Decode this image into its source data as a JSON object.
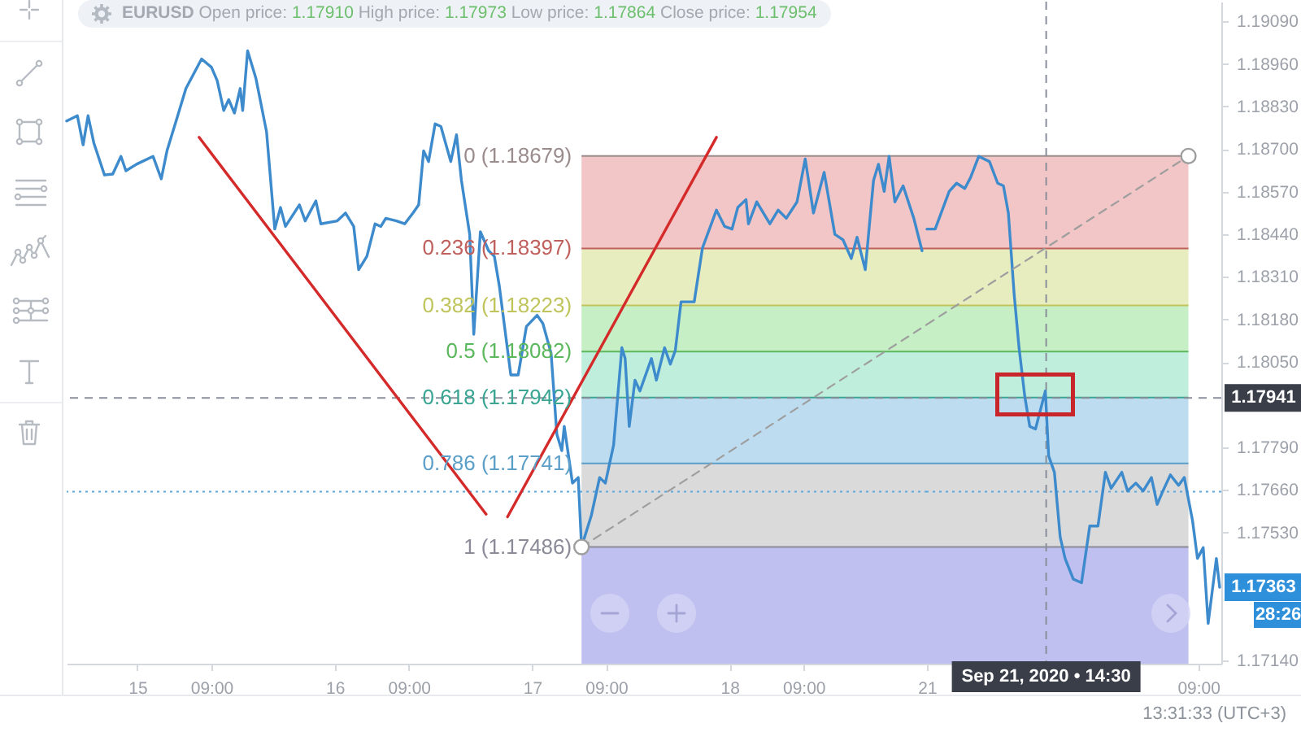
{
  "chart_data": [
    {
      "type": "line",
      "title": "EURUSD Open price: 1.17910 High price: 1.17973 Low price: 1.17864 Close price: 1.17954",
      "xlim": [
        "2020-09-14T15:24",
        "2020-09-19T00:00"
      ],
      "xticks": [
        {
          "value": "2020-09-15",
          "label": "15"
        },
        {
          "value": "2020-09-15T09:00",
          "label": "09:00"
        },
        {
          "value": "2020-09-16",
          "label": "16"
        },
        {
          "value": "2020-09-16T09:00",
          "label": "09:00"
        },
        {
          "value": "2020-09-17",
          "label": "17"
        },
        {
          "value": "2020-09-17T09:00",
          "label": "09:00"
        },
        {
          "value": "2020-09-18",
          "label": "18"
        },
        {
          "value": "2020-09-18T09:00",
          "label": "09:00"
        }
      ],
      "ylim": [
        1.1713,
        1.1915
      ],
      "tick_labels": "x",
      "bands": [
        {
          "axis": "y",
          "from": 1.18397,
          "to": 1.18679,
          "color": "#f2c6c6"
        },
        {
          "axis": "y",
          "from": 1.18223,
          "to": 1.18397,
          "color": "#e8edc0"
        },
        {
          "axis": "y",
          "from": 1.18082,
          "to": 1.18223,
          "color": "#c6efc6"
        },
        {
          "axis": "y",
          "from": 1.17942,
          "to": 1.18082,
          "color": "#c0eedd"
        },
        {
          "axis": "y",
          "from": 1.17741,
          "to": 1.17942,
          "color": "#bddcf0"
        },
        {
          "axis": "y",
          "from": 1.17486,
          "to": 1.17741,
          "color": "#dadada"
        },
        {
          "axis": "y",
          "from": 1.1713,
          "to": 1.17486,
          "color": "#bfbff0"
        }
      ],
      "ref_lines": [
        {
          "axis": "y",
          "value": 1.18679,
          "label": "0 (1.18679)",
          "color": "#9a8c8c",
          "line_style": "solid"
        },
        {
          "axis": "y",
          "value": 1.18397,
          "label": "0.236 (1.18397)",
          "color": "#c0605c",
          "line_style": "solid"
        },
        {
          "axis": "y",
          "value": 1.18223,
          "label": "0.382 (1.18223)",
          "color": "#bfc55a",
          "line_style": "solid"
        },
        {
          "axis": "y",
          "value": 1.18082,
          "label": "0.5 (1.18082)",
          "color": "#5cb85c",
          "line_style": "solid"
        },
        {
          "axis": "y",
          "value": 1.17942,
          "label": "0.618 (1.17942)",
          "color": "#3aa592",
          "line_style": "solid"
        },
        {
          "axis": "y",
          "value": 1.17741,
          "label": "0.786 (1.17741)",
          "color": "#5b9fc9",
          "line_style": "solid"
        },
        {
          "axis": "y",
          "value": 1.17486,
          "label": "1 (1.17486)",
          "color": "#8a8a98",
          "line_style": "solid"
        },
        {
          "axis": "y",
          "value": 1.17941,
          "color": "#8a8f99",
          "line_style": "dashed"
        },
        {
          "axis": "y",
          "value": 1.17655,
          "color": "#5fa8dc",
          "line_style": "dotted"
        }
      ],
      "series": [
        {
          "color": "#3d8bcd",
          "x": [
            "2020-09-14T15:24",
            "2020-09-14T16:42",
            "2020-09-14T17:24",
            "2020-09-14T18:00",
            "2020-09-14T18:42",
            "2020-09-14T20:00",
            "2020-09-14T21:00",
            "2020-09-14T22:00",
            "2020-09-14T22:36",
            "2020-09-14T23:54",
            "2020-09-15T01:54",
            "2020-09-15T02:54",
            "2020-09-15T03:36",
            "2020-09-15T04:54",
            "2020-09-15T05:54",
            "2020-09-15T07:48",
            "2020-09-15T09:00",
            "2020-09-15T09:42",
            "2020-09-15T10:30",
            "2020-09-15T11:06",
            "2020-09-15T11:48",
            "2020-09-15T12:30",
            "2020-09-15T12:48",
            "2020-09-15T13:24",
            "2020-09-15T14:24",
            "2020-09-15T15:42",
            "2020-09-15T16:42",
            "2020-09-15T17:24",
            "2020-09-15T18:00",
            "2020-09-15T19:42",
            "2020-09-15T20:24",
            "2020-09-15T21:42",
            "2020-09-15T22:18",
            "2020-09-16T00:18",
            "2020-09-16T01:18",
            "2020-09-16T02:18",
            "2020-09-16T02:54",
            "2020-09-16T03:54",
            "2020-09-16T04:54",
            "2020-09-16T05:36",
            "2020-09-16T06:12",
            "2020-09-16T07:30",
            "2020-09-16T08:30",
            "2020-09-16T09:30",
            "2020-09-16T10:12",
            "2020-09-16T10:48",
            "2020-09-16T11:24",
            "2020-09-16T12:12",
            "2020-09-16T12:54",
            "2020-09-16T14:06",
            "2020-09-16T14:48",
            "2020-09-16T15:24",
            "2020-09-16T16:24",
            "2020-09-16T16:54",
            "2020-09-16T17:42",
            "2020-09-16T18:42",
            "2020-09-16T19:24",
            "2020-09-16T20:00",
            "2020-09-16T21:24",
            "2020-09-16T22:18",
            "2020-09-16T23:18",
            "2020-09-17T00:36",
            "2020-09-17T01:18",
            "2020-09-17T02:18",
            "2020-09-17T03:00",
            "2020-09-17T03:36",
            "2020-09-17T03:54",
            "2020-09-17T04:54",
            "2020-09-17T05:36",
            "2020-09-17T06:00",
            "2020-09-17T07:12",
            "2020-09-17T08:12",
            "2020-09-17T08:54",
            "2020-09-17T09:54",
            "2020-09-17T10:54",
            "2020-09-17T11:18",
            "2020-09-17T11:48",
            "2020-09-17T12:30",
            "2020-09-17T13:06",
            "2020-09-17T14:30",
            "2020-09-17T15:06",
            "2020-09-17T16:06",
            "2020-09-17T16:48",
            "2020-09-17T17:24",
            "2020-09-17T18:06",
            "2020-09-17T19:42",
            "2020-09-17T20:42",
            "2020-09-17T22:24",
            "2020-09-17T23:24",
            "2020-09-18T00:18",
            "2020-09-18T01:00",
            "2020-09-18T02:00",
            "2020-09-18T02:18",
            "2020-09-18T03:18",
            "2020-09-18T04:54",
            "2020-09-18T05:54",
            "2020-09-18T06:54",
            "2020-09-18T08:12",
            "2020-09-18T09:12",
            "2020-09-18T10:12",
            "2020-09-18T11:30",
            "2020-09-18T12:48",
            "2020-09-18T13:48",
            "2020-09-18T14:48",
            "2020-09-18T15:30",
            "2020-09-18T16:30",
            "2020-09-18T17:30",
            "2020-09-18T18:06",
            "2020-09-18T18:48",
            "2020-09-18T19:24",
            "2020-09-18T20:06",
            "2020-09-18T21:06",
            "2020-09-18T22:24",
            "2020-09-18T23:24"
          ],
          "values": [
            1.18786,
            1.18802,
            1.18713,
            1.18802,
            1.18719,
            1.18621,
            1.18624,
            1.18678,
            1.18634,
            1.18654,
            1.18678,
            1.18609,
            1.18695,
            1.18802,
            1.18885,
            1.18975,
            1.1895,
            1.18909,
            1.18818,
            1.18851,
            1.1881,
            1.18885,
            1.18818,
            1.19,
            1.18917,
            1.18753,
            1.18456,
            1.18522,
            1.18464,
            1.1853,
            1.18481,
            1.18542,
            1.18472,
            1.18481,
            1.18505,
            1.18464,
            1.18332,
            1.18373,
            1.18472,
            1.18464,
            1.18489,
            1.18481,
            1.18472,
            1.18505,
            1.1853,
            1.18695,
            1.18662,
            1.18777,
            1.18769,
            1.18662,
            1.18744,
            1.18604,
            1.1844,
            1.18135,
            1.18448,
            1.1839,
            1.18373,
            1.18283,
            1.18011,
            1.18011,
            1.18159,
            1.18193,
            1.18168,
            1.18077,
            1.1783,
            1.1778,
            1.17854,
            1.17681,
            1.17698,
            1.17486,
            1.17583,
            1.17698,
            1.17681,
            1.17797,
            1.18094,
            1.18061,
            1.17854,
            1.17995,
            1.17962,
            1.18061,
            1.17995,
            1.18094,
            1.18044,
            1.18085,
            1.18234,
            1.18234,
            1.18398,
            1.18514,
            1.18464,
            1.18456,
            1.18522,
            1.18546,
            1.18472,
            1.18539,
            1.18472,
            1.18514,
            1.18489,
            1.18539,
            1.1867,
            1.18505,
            1.18629,
            1.1844,
            1.18423,
            1.18366,
            1.18431,
            1.18332,
            1.18604,
            1.18654,
            1.18571,
            1.18678,
            1.18539,
            1.18588,
            1.18489,
            1.1839
          ]
        },
        {
          "color": "#9e9e9e",
          "line_style": "dashed",
          "x": [
            "2020-09-17T06:00",
            "2020-09-19T00:00"
          ],
          "values": [
            1.17486,
            1.18165
          ]
        },
        {
          "type": "scatter",
          "color": "#9e9e9e",
          "marker": "circle",
          "x": [
            "2020-09-17T06:00"
          ],
          "values": [
            1.17486
          ]
        },
        {
          "color": "#d42a2a",
          "x": [
            "2020-09-15T07:30",
            "2020-09-16T18:24"
          ],
          "values": [
            1.18736,
            1.17586
          ]
        },
        {
          "color": "#d42a2a",
          "x": [
            "2020-09-16T21:00",
            "2020-09-17T22:24"
          ],
          "values": [
            1.17578,
            1.18736
          ]
        }
      ]
    },
    {
      "type": "line",
      "xlim": [
        "2020-09-21T00:00",
        "2020-09-22T11:48"
      ],
      "xticks": [
        {
          "value": "2020-09-21",
          "label": "21"
        },
        {
          "value": "2020-09-22T09:00",
          "label": "09:00"
        }
      ],
      "ylim": [
        1.1713,
        1.1915
      ],
      "yticks": [
        {
          "value": 1.1909,
          "label": "1.19090"
        },
        {
          "value": 1.1896,
          "label": "1.18960"
        },
        {
          "value": 1.1883,
          "label": "1.18830"
        },
        {
          "value": 1.187,
          "label": "1.18700"
        },
        {
          "value": 1.1857,
          "label": "1.18570"
        },
        {
          "value": 1.1844,
          "label": "1.18440"
        },
        {
          "value": 1.1831,
          "label": "1.18310"
        },
        {
          "value": 1.1818,
          "label": "1.18180"
        },
        {
          "value": 1.1805,
          "label": "1.18050"
        },
        {
          "value": 1.1779,
          "label": "1.17790"
        },
        {
          "value": 1.1766,
          "label": "1.17660"
        },
        {
          "value": 1.1753,
          "label": "1.17530"
        },
        {
          "value": 1.1714,
          "label": "1.17140"
        }
      ],
      "bands": [
        {
          "axis": "y",
          "from": 1.18397,
          "to": 1.18679,
          "color": "#f2c6c6"
        },
        {
          "axis": "y",
          "from": 1.18223,
          "to": 1.18397,
          "color": "#e8edc0"
        },
        {
          "axis": "y",
          "from": 1.18082,
          "to": 1.18223,
          "color": "#c6efc6"
        },
        {
          "axis": "y",
          "from": 1.17942,
          "to": 1.18082,
          "color": "#c0eedd"
        },
        {
          "axis": "y",
          "from": 1.17741,
          "to": 1.17942,
          "color": "#bddcf0"
        },
        {
          "axis": "y",
          "from": 1.17486,
          "to": 1.17741,
          "color": "#dadada"
        },
        {
          "axis": "y",
          "from": 1.1713,
          "to": 1.17486,
          "color": "#bfbff0"
        }
      ],
      "ref_lines": [
        {
          "axis": "y",
          "value": 1.18679,
          "color": "#9a8c8c",
          "line_style": "solid"
        },
        {
          "axis": "y",
          "value": 1.18397,
          "color": "#c0605c",
          "line_style": "solid"
        },
        {
          "axis": "y",
          "value": 1.18223,
          "color": "#bfc55a",
          "line_style": "solid"
        },
        {
          "axis": "y",
          "value": 1.18082,
          "color": "#5cb85c",
          "line_style": "solid"
        },
        {
          "axis": "y",
          "value": 1.17942,
          "color": "#3aa592",
          "line_style": "solid"
        },
        {
          "axis": "y",
          "value": 1.17741,
          "color": "#5b9fc9",
          "line_style": "solid"
        },
        {
          "axis": "y",
          "value": 1.17486,
          "color": "#8a8a98",
          "line_style": "solid"
        },
        {
          "axis": "y",
          "value": 1.17941,
          "label": "1.17941",
          "color": "#8a8f99",
          "line_style": "dashed"
        },
        {
          "axis": "x",
          "value": "2020-09-21T14:30",
          "label": "Sep 21, 2020 • 14:30",
          "color": "#8a8f99",
          "line_style": "dashed"
        },
        {
          "axis": "y",
          "value": 1.17655,
          "color": "#5fa8dc",
          "line_style": "dotted"
        }
      ],
      "series": [
        {
          "color": "#3d8bcd",
          "x": [
            "2020-09-21T00:00",
            "2020-09-21T01:00",
            "2020-09-21T02:42",
            "2020-09-21T03:36",
            "2020-09-21T04:36",
            "2020-09-21T05:18",
            "2020-09-21T06:18",
            "2020-09-21T07:36",
            "2020-09-21T08:36",
            "2020-09-21T09:18",
            "2020-09-21T09:54",
            "2020-09-21T10:36",
            "2020-09-21T11:12",
            "2020-09-21T11:54",
            "2020-09-21T12:30",
            "2020-09-21T13:12",
            "2020-09-21T14:24",
            "2020-09-21T14:48",
            "2020-09-21T15:30",
            "2020-09-21T16:12",
            "2020-09-21T16:48",
            "2020-09-21T17:48",
            "2020-09-21T18:48",
            "2020-09-21T19:48",
            "2020-09-21T20:48",
            "2020-09-21T21:42",
            "2020-09-21T22:24",
            "2020-09-21T23:42",
            "2020-09-22T00:24",
            "2020-09-22T01:24",
            "2020-09-22T02:18",
            "2020-09-22T03:18",
            "2020-09-22T04:00",
            "2020-09-22T04:42",
            "2020-09-22T05:36",
            "2020-09-22T06:36",
            "2020-09-22T07:18",
            "2020-09-22T08:18",
            "2020-09-22T08:54",
            "2020-09-22T09:36",
            "2020-09-22T10:12",
            "2020-09-22T11:12",
            "2020-09-22T11:36"
          ],
          "values": [
            1.18456,
            1.18456,
            1.18571,
            1.18596,
            1.1858,
            1.18613,
            1.18678,
            1.18662,
            1.18596,
            1.18588,
            1.18505,
            1.18258,
            1.18094,
            1.17945,
            1.17854,
            1.17846,
            1.17962,
            1.17764,
            1.17714,
            1.17517,
            1.17451,
            1.17388,
            1.17377,
            1.1755,
            1.1755,
            1.17714,
            1.17665,
            1.17714,
            1.17657,
            1.17681,
            1.17657,
            1.17698,
            1.17616,
            1.17657,
            1.17706,
            1.17674,
            1.17698,
            1.17566,
            1.17451,
            1.17484,
            1.17253,
            1.17451,
            1.17363
          ]
        },
        {
          "color": "#9e9e9e",
          "line_style": "dashed",
          "x": [
            "2020-09-21T00:00",
            "2020-09-22T07:48"
          ],
          "values": [
            1.18165,
            1.18679
          ]
        },
        {
          "type": "scatter",
          "color": "#9e9e9e",
          "marker": "circle",
          "x": [
            "2020-09-22T07:48"
          ],
          "values": [
            1.18679
          ]
        }
      ],
      "annotations": [
        "1.17363",
        "28:26",
        "13:31:33 (UTC+3)"
      ]
    }
  ]
}
